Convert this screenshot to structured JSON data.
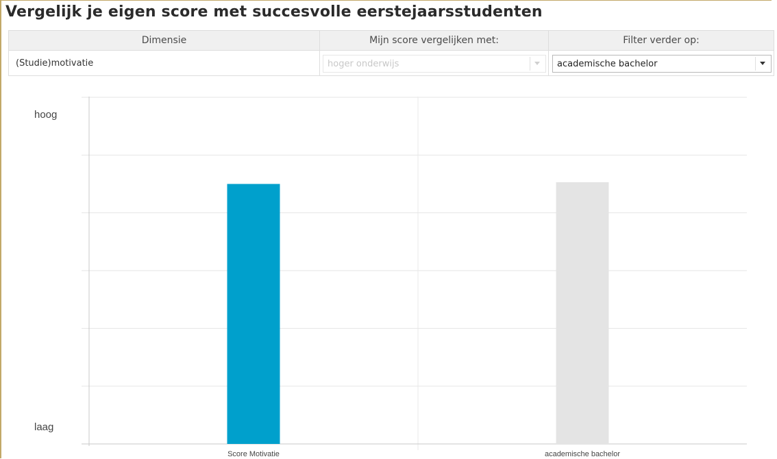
{
  "title": "Vergelijk je eigen score met succesvolle eerstejaarsstudenten",
  "table": {
    "headers": [
      "Dimensie",
      "Mijn score vergelijken met:",
      "Filter verder op:"
    ],
    "dimension_value": "(Studie)motivatie",
    "compare_select": {
      "value": "hoger onderwijs",
      "disabled": true
    },
    "filter_select": {
      "value": "academische bachelor",
      "disabled": false
    }
  },
  "chart_data": {
    "type": "bar",
    "categories": [
      "Score Motivatie",
      "academische bachelor"
    ],
    "values": [
      0.75,
      0.755
    ],
    "colors": [
      "#00a0cc",
      "#e4e4e4"
    ],
    "ylim": [
      0,
      1
    ],
    "y_tick_labels": {
      "top": "hoog",
      "bottom": "laag"
    },
    "grid": true,
    "gridlines": 6
  }
}
